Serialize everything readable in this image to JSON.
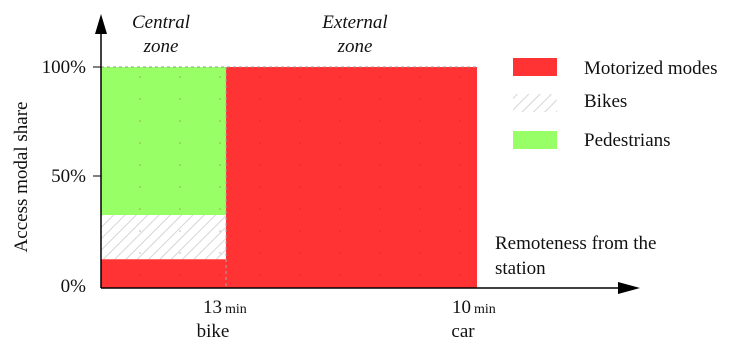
{
  "chart_data": {
    "type": "stacked-area",
    "ylabel": "Access modal share",
    "xlabel": "Remoteness from the station",
    "y_ticks": [
      "100%",
      "50%",
      "0%"
    ],
    "ylim": [
      0,
      100
    ],
    "zones": [
      {
        "label": "Central zone",
        "line1": "Central",
        "line2": "zone"
      },
      {
        "label": "External zone",
        "line1": "External",
        "line2": "zone"
      }
    ],
    "x_markers": [
      {
        "value": "13",
        "unit": "min",
        "mode": "bike"
      },
      {
        "value": "10",
        "unit": "min",
        "mode": "car"
      }
    ],
    "series": [
      {
        "name": "Motorized modes",
        "color": "#ff3333",
        "values": [
          13,
          100
        ]
      },
      {
        "name": "Bikes",
        "color": "hatched",
        "values": [
          20,
          0
        ]
      },
      {
        "name": "Pedestrians",
        "color": "#99ff66",
        "values": [
          67,
          0
        ]
      }
    ],
    "legend": [
      {
        "label": "Motorized modes",
        "swatch": "red"
      },
      {
        "label": "Bikes",
        "swatch": "hatched"
      },
      {
        "label": "Pedestrians",
        "swatch": "green"
      }
    ],
    "legend_position": "right",
    "grid": "dotted"
  }
}
